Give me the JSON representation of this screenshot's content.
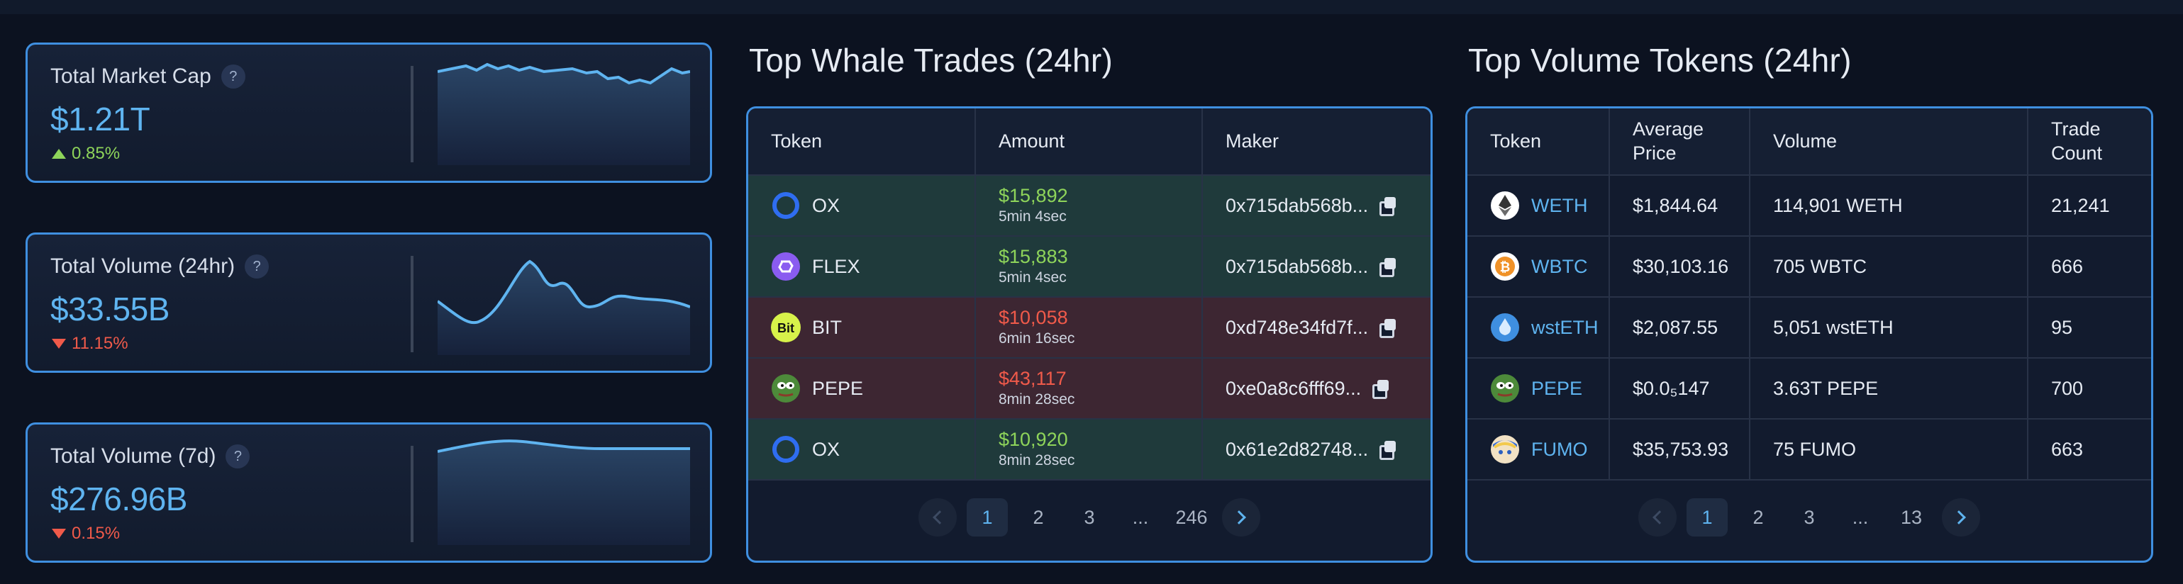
{
  "stats": [
    {
      "title": "Total Market Cap",
      "help": "?",
      "value": "$1.21T",
      "change": "0.85%",
      "direction": "up"
    },
    {
      "title": "Total Volume (24hr)",
      "help": "?",
      "value": "$33.55B",
      "change": "11.15%",
      "direction": "down"
    },
    {
      "title": "Total Volume (7d)",
      "help": "?",
      "value": "$276.96B",
      "change": "0.15%",
      "direction": "down"
    }
  ],
  "whale": {
    "title": "Top Whale Trades (24hr)",
    "columns": [
      "Token",
      "Amount",
      "Maker"
    ],
    "rows": [
      {
        "token": "OX",
        "icon": "ox-icon",
        "amount": "$15,892",
        "ago": "5min 4sec",
        "maker": "0x715dab568b...",
        "side": "buy"
      },
      {
        "token": "FLEX",
        "icon": "flex-icon",
        "amount": "$15,883",
        "ago": "5min 4sec",
        "maker": "0x715dab568b...",
        "side": "buy"
      },
      {
        "token": "BIT",
        "icon": "bit-icon",
        "amount": "$10,058",
        "ago": "6min 16sec",
        "maker": "0xd748e34fd7f...",
        "side": "sell"
      },
      {
        "token": "PEPE",
        "icon": "pepe-icon",
        "amount": "$43,117",
        "ago": "8min 28sec",
        "maker": "0xe0a8c6fff69...",
        "side": "sell"
      },
      {
        "token": "OX",
        "icon": "ox-icon",
        "amount": "$10,920",
        "ago": "8min 28sec",
        "maker": "0x61e2d82748...",
        "side": "buy"
      }
    ],
    "pagination": {
      "pages": [
        "1",
        "2",
        "3",
        "...",
        "246"
      ],
      "current": "1"
    }
  },
  "volume": {
    "title": "Top Volume Tokens (24hr)",
    "columns": [
      "Token",
      "Average Price",
      "Volume",
      "Trade Count"
    ],
    "rows": [
      {
        "token": "WETH",
        "icon": "eth-icon",
        "price": "$1,844.64",
        "volume": "114,901 WETH",
        "count": "21,241"
      },
      {
        "token": "WBTC",
        "icon": "btc-icon",
        "price": "$30,103.16",
        "volume": "705 WBTC",
        "count": "666"
      },
      {
        "token": "wstETH",
        "icon": "wsteth-icon",
        "price": "$2,087.55",
        "volume": "5,051 wstETH",
        "count": "95"
      },
      {
        "token": "PEPE",
        "icon": "pepe-icon",
        "price": "$0.0₅147",
        "volume": "3.63T PEPE",
        "count": "700"
      },
      {
        "token": "FUMO",
        "icon": "fumo-icon",
        "price": "$35,753.93",
        "volume": "75 FUMO",
        "count": "663"
      }
    ],
    "pagination": {
      "pages": [
        "1",
        "2",
        "3",
        "...",
        "13"
      ],
      "current": "1"
    }
  },
  "colors": {
    "accent": "#3f8fe0",
    "value": "#5fb4f0",
    "up": "#8ed45a",
    "down": "#f05a4a",
    "buy_row": "#1f3a3b",
    "sell_row": "#3d2632"
  }
}
